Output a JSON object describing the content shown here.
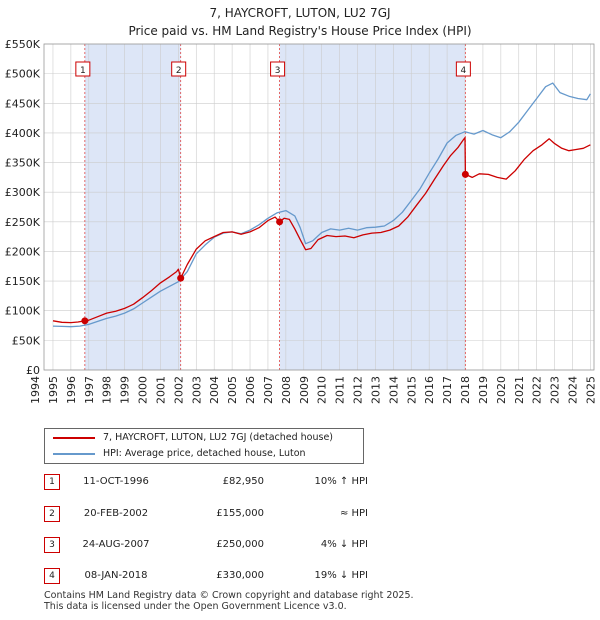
{
  "title_line1": "7, HAYCROFT, LUTON, LU2 7GJ",
  "title_line2": "Price paid vs. HM Land Registry's House Price Index (HPI)",
  "colors": {
    "price_line": "#cc0000",
    "hpi_line": "#6699cc",
    "shade": "#dde6f7",
    "grid": "#cccccc",
    "marker_border": "#cc0000"
  },
  "chart_data": {
    "type": "line",
    "title": "Price paid vs. HM Land Registry's House Price Index (HPI)",
    "xlabel": "",
    "ylabel": "",
    "xlim": [
      1994.5,
      2025.2
    ],
    "ylim": [
      0,
      550000
    ],
    "x_ticks": [
      1994,
      1995,
      1996,
      1997,
      1998,
      1999,
      2000,
      2001,
      2002,
      2003,
      2004,
      2005,
      2006,
      2007,
      2008,
      2009,
      2010,
      2011,
      2012,
      2013,
      2014,
      2015,
      2016,
      2017,
      2018,
      2019,
      2020,
      2021,
      2022,
      2023,
      2024,
      2025
    ],
    "y_ticks": [
      {
        "value": 0,
        "label": "£0"
      },
      {
        "value": 50000,
        "label": "£50K"
      },
      {
        "value": 100000,
        "label": "£100K"
      },
      {
        "value": 150000,
        "label": "£150K"
      },
      {
        "value": 200000,
        "label": "£200K"
      },
      {
        "value": 250000,
        "label": "£250K"
      },
      {
        "value": 300000,
        "label": "£300K"
      },
      {
        "value": 350000,
        "label": "£350K"
      },
      {
        "value": 400000,
        "label": "£400K"
      },
      {
        "value": 450000,
        "label": "£450K"
      },
      {
        "value": 500000,
        "label": "£500K"
      },
      {
        "value": 550000,
        "label": "£550K"
      }
    ],
    "shaded_ranges": [
      [
        1996.78,
        2002.13
      ],
      [
        2007.65,
        2018.02
      ]
    ],
    "series": [
      {
        "name": "7, HAYCROFT, LUTON, LU2 7GJ (detached house)",
        "color": "#cc0000",
        "points": [
          [
            1995.0,
            83000
          ],
          [
            1995.5,
            80500
          ],
          [
            1996.0,
            80000
          ],
          [
            1996.4,
            81000
          ],
          [
            1996.78,
            82950
          ],
          [
            1997.0,
            84000
          ],
          [
            1997.5,
            90000
          ],
          [
            1998.0,
            96000
          ],
          [
            1998.5,
            99000
          ],
          [
            1999.0,
            104000
          ],
          [
            1999.5,
            111000
          ],
          [
            2000.0,
            122000
          ],
          [
            2000.5,
            134000
          ],
          [
            2001.0,
            147000
          ],
          [
            2001.5,
            157000
          ],
          [
            2001.9,
            166000
          ],
          [
            2002.0,
            170000
          ],
          [
            2002.13,
            155000
          ],
          [
            2002.5,
            178000
          ],
          [
            2003.0,
            204000
          ],
          [
            2003.5,
            218000
          ],
          [
            2004.0,
            225000
          ],
          [
            2004.5,
            232000
          ],
          [
            2005.0,
            233000
          ],
          [
            2005.5,
            229000
          ],
          [
            2006.0,
            233000
          ],
          [
            2006.5,
            240000
          ],
          [
            2007.0,
            252000
          ],
          [
            2007.4,
            258000
          ],
          [
            2007.65,
            250000
          ],
          [
            2007.9,
            256000
          ],
          [
            2008.2,
            254000
          ],
          [
            2008.5,
            238000
          ],
          [
            2008.8,
            220000
          ],
          [
            2009.1,
            203000
          ],
          [
            2009.4,
            205000
          ],
          [
            2009.8,
            220000
          ],
          [
            2010.3,
            227000
          ],
          [
            2010.8,
            225000
          ],
          [
            2011.3,
            226000
          ],
          [
            2011.8,
            223000
          ],
          [
            2012.3,
            228000
          ],
          [
            2012.8,
            231000
          ],
          [
            2013.3,
            232000
          ],
          [
            2013.8,
            236000
          ],
          [
            2014.3,
            243000
          ],
          [
            2014.8,
            258000
          ],
          [
            2015.3,
            278000
          ],
          [
            2015.8,
            298000
          ],
          [
            2016.3,
            322000
          ],
          [
            2016.8,
            345000
          ],
          [
            2017.2,
            362000
          ],
          [
            2017.6,
            375000
          ],
          [
            2017.9,
            388000
          ],
          [
            2018.0,
            392000
          ],
          [
            2018.02,
            330000
          ],
          [
            2018.4,
            325000
          ],
          [
            2018.8,
            331000
          ],
          [
            2019.3,
            330000
          ],
          [
            2019.8,
            325000
          ],
          [
            2020.3,
            322000
          ],
          [
            2020.8,
            336000
          ],
          [
            2021.3,
            355000
          ],
          [
            2021.8,
            370000
          ],
          [
            2022.3,
            380000
          ],
          [
            2022.7,
            390000
          ],
          [
            2023.0,
            382000
          ],
          [
            2023.4,
            374000
          ],
          [
            2023.8,
            370000
          ],
          [
            2024.2,
            372000
          ],
          [
            2024.6,
            374000
          ],
          [
            2025.0,
            380000
          ]
        ]
      },
      {
        "name": "HPI: Average price, detached house, Luton",
        "color": "#6699cc",
        "points": [
          [
            1995.0,
            74000
          ],
          [
            1995.5,
            73500
          ],
          [
            1996.0,
            73000
          ],
          [
            1996.5,
            74000
          ],
          [
            1997.0,
            77000
          ],
          [
            1997.5,
            82000
          ],
          [
            1998.0,
            87000
          ],
          [
            1998.5,
            91000
          ],
          [
            1999.0,
            96000
          ],
          [
            1999.5,
            103000
          ],
          [
            2000.0,
            113000
          ],
          [
            2000.5,
            123000
          ],
          [
            2001.0,
            133000
          ],
          [
            2001.5,
            141000
          ],
          [
            2002.0,
            149000
          ],
          [
            2002.5,
            166000
          ],
          [
            2003.0,
            196000
          ],
          [
            2003.5,
            211000
          ],
          [
            2004.0,
            224000
          ],
          [
            2004.5,
            231000
          ],
          [
            2005.0,
            233000
          ],
          [
            2005.5,
            230000
          ],
          [
            2006.0,
            236000
          ],
          [
            2006.5,
            245000
          ],
          [
            2007.0,
            256000
          ],
          [
            2007.5,
            265000
          ],
          [
            2008.0,
            269000
          ],
          [
            2008.5,
            260000
          ],
          [
            2008.8,
            240000
          ],
          [
            2009.1,
            213000
          ],
          [
            2009.5,
            218000
          ],
          [
            2010.0,
            232000
          ],
          [
            2010.5,
            238000
          ],
          [
            2011.0,
            236000
          ],
          [
            2011.5,
            239000
          ],
          [
            2012.0,
            236000
          ],
          [
            2012.5,
            240000
          ],
          [
            2013.0,
            241000
          ],
          [
            2013.5,
            243000
          ],
          [
            2014.0,
            252000
          ],
          [
            2014.5,
            266000
          ],
          [
            2015.0,
            286000
          ],
          [
            2015.5,
            306000
          ],
          [
            2016.0,
            332000
          ],
          [
            2016.5,
            356000
          ],
          [
            2017.0,
            383000
          ],
          [
            2017.5,
            396000
          ],
          [
            2018.0,
            402000
          ],
          [
            2018.5,
            398000
          ],
          [
            2019.0,
            404000
          ],
          [
            2019.5,
            397000
          ],
          [
            2020.0,
            392000
          ],
          [
            2020.5,
            402000
          ],
          [
            2021.0,
            418000
          ],
          [
            2021.5,
            438000
          ],
          [
            2022.0,
            458000
          ],
          [
            2022.5,
            478000
          ],
          [
            2022.9,
            484000
          ],
          [
            2023.3,
            468000
          ],
          [
            2023.8,
            462000
          ],
          [
            2024.3,
            458000
          ],
          [
            2024.8,
            456000
          ],
          [
            2025.0,
            466000
          ]
        ]
      }
    ],
    "annotations": [
      {
        "label": "1",
        "x": 1996.78,
        "price": 82950
      },
      {
        "label": "2",
        "x": 2002.13,
        "price": 155000
      },
      {
        "label": "3",
        "x": 2007.65,
        "price": 250000
      },
      {
        "label": "4",
        "x": 2018.02,
        "price": 330000
      }
    ]
  },
  "legend": [
    {
      "label": "7, HAYCROFT, LUTON, LU2 7GJ (detached house)",
      "color": "#cc0000"
    },
    {
      "label": "HPI: Average price, detached house, Luton",
      "color": "#6699cc"
    }
  ],
  "sales": [
    {
      "num": "1",
      "date": "11-OCT-1996",
      "price": "£82,950",
      "hpi": "10% ↑ HPI"
    },
    {
      "num": "2",
      "date": "20-FEB-2002",
      "price": "£155,000",
      "hpi": "≈ HPI"
    },
    {
      "num": "3",
      "date": "24-AUG-2007",
      "price": "£250,000",
      "hpi": "4% ↓ HPI"
    },
    {
      "num": "4",
      "date": "08-JAN-2018",
      "price": "£330,000",
      "hpi": "19% ↓ HPI"
    }
  ],
  "footer": {
    "line1": "Contains HM Land Registry data © Crown copyright and database right 2025.",
    "line2": "This data is licensed under the Open Government Licence v3.0."
  }
}
